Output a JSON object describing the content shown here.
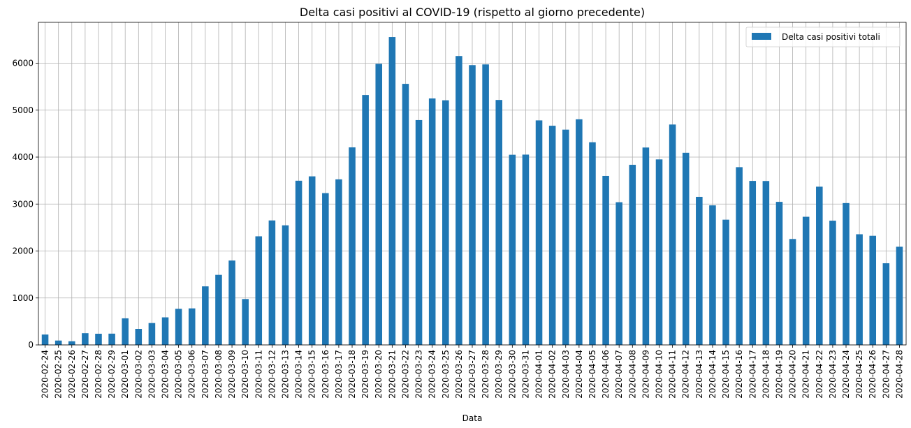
{
  "chart_data": {
    "type": "bar",
    "title": "Delta casi positivi al COVID-19 (rispetto al giorno precedente)",
    "xlabel": "Data",
    "ylabel": "",
    "ylim": [
      0,
      6870
    ],
    "yticks": [
      0,
      1000,
      2000,
      3000,
      4000,
      5000,
      6000
    ],
    "grid": true,
    "legend_position": "top-right",
    "color": "#1f77b4",
    "categories": [
      "2020-02-24",
      "2020-02-25",
      "2020-02-26",
      "2020-02-27",
      "2020-02-28",
      "2020-02-29",
      "2020-03-01",
      "2020-03-02",
      "2020-03-03",
      "2020-03-04",
      "2020-03-05",
      "2020-03-06",
      "2020-03-07",
      "2020-03-08",
      "2020-03-09",
      "2020-03-10",
      "2020-03-11",
      "2020-03-12",
      "2020-03-13",
      "2020-03-14",
      "2020-03-15",
      "2020-03-16",
      "2020-03-17",
      "2020-03-18",
      "2020-03-19",
      "2020-03-20",
      "2020-03-21",
      "2020-03-22",
      "2020-03-23",
      "2020-03-24",
      "2020-03-25",
      "2020-03-26",
      "2020-03-27",
      "2020-03-28",
      "2020-03-29",
      "2020-03-30",
      "2020-03-31",
      "2020-04-01",
      "2020-04-02",
      "2020-04-03",
      "2020-04-04",
      "2020-04-05",
      "2020-04-06",
      "2020-04-07",
      "2020-04-08",
      "2020-04-09",
      "2020-04-10",
      "2020-04-11",
      "2020-04-12",
      "2020-04-13",
      "2020-04-14",
      "2020-04-15",
      "2020-04-16",
      "2020-04-17",
      "2020-04-18",
      "2020-04-19",
      "2020-04-20",
      "2020-04-21",
      "2020-04-22",
      "2020-04-23",
      "2020-04-24",
      "2020-04-25",
      "2020-04-26",
      "2020-04-27",
      "2020-04-28"
    ],
    "series": [
      {
        "name": "Delta casi positivi totali",
        "values": [
          221,
          93,
          78,
          250,
          238,
          240,
          566,
          342,
          466,
          587,
          769,
          778,
          1247,
          1492,
          1797,
          977,
          2313,
          2651,
          2547,
          3497,
          3590,
          3233,
          3526,
          4207,
          5322,
          5986,
          6557,
          5560,
          4789,
          5249,
          5210,
          6153,
          5959,
          5974,
          5217,
          4050,
          4053,
          4782,
          4668,
          4585,
          4805,
          4316,
          3599,
          3039,
          3836,
          4204,
          3951,
          4694,
          4092,
          3153,
          2972,
          2667,
          3786,
          3493,
          3491,
          3047,
          2256,
          2729,
          3370,
          2646,
          3021,
          2357,
          2324,
          1739,
          2091
        ]
      }
    ]
  }
}
